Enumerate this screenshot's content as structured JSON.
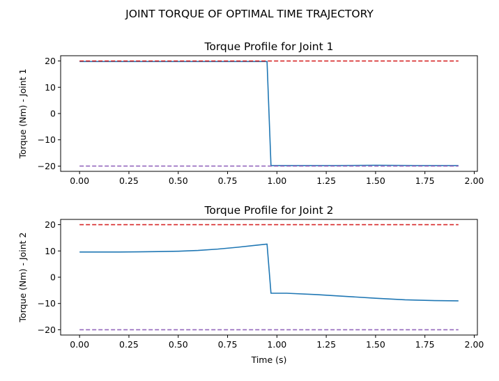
{
  "figure": {
    "title": "JOINT TORQUE OF OPTIMAL TIME TRAJECTORY"
  },
  "colors": {
    "series": "#1f77b4",
    "upper_limit": "#d62728",
    "lower_limit": "#9467bd"
  },
  "chart_data": [
    {
      "type": "line",
      "title": "Torque Profile for Joint 1",
      "xlabel": "",
      "ylabel": "Torque (Nm) - Joint 1",
      "xlim": [
        -0.096,
        2.016
      ],
      "ylim": [
        -22,
        22
      ],
      "xticks": [
        0.0,
        0.25,
        0.5,
        0.75,
        1.0,
        1.25,
        1.5,
        1.75,
        2.0
      ],
      "xtick_labels": [
        "0.00",
        "0.25",
        "0.50",
        "0.75",
        "1.00",
        "1.25",
        "1.50",
        "1.75",
        "2.00"
      ],
      "yticks": [
        -20,
        -10,
        0,
        10,
        20
      ],
      "ytick_labels": [
        "−20",
        "−10",
        "0",
        "10",
        "20"
      ],
      "grid": false,
      "series": [
        {
          "style": "solid",
          "x": [
            0.0,
            0.2,
            0.4,
            0.6,
            0.8,
            0.94,
            0.95,
            0.97,
            1.1,
            1.3,
            1.5,
            1.7,
            1.92
          ],
          "y": [
            19.8,
            19.8,
            19.8,
            19.8,
            19.8,
            19.8,
            19.8,
            -19.8,
            -19.8,
            -19.8,
            -19.7,
            -19.8,
            -19.8
          ]
        },
        {
          "style": "dashed",
          "color_key": "upper_limit",
          "x": [
            0.0,
            1.92
          ],
          "y": [
            20,
            20
          ]
        },
        {
          "style": "dashed",
          "color_key": "lower_limit",
          "x": [
            0.0,
            1.92
          ],
          "y": [
            -20,
            -20
          ]
        }
      ]
    },
    {
      "type": "line",
      "title": "Torque Profile for Joint 2",
      "xlabel": "Time (s)",
      "ylabel": "Torque (Nm) - Joint 2",
      "xlim": [
        -0.096,
        2.016
      ],
      "ylim": [
        -22,
        22
      ],
      "xticks": [
        0.0,
        0.25,
        0.5,
        0.75,
        1.0,
        1.25,
        1.5,
        1.75,
        2.0
      ],
      "xtick_labels": [
        "0.00",
        "0.25",
        "0.50",
        "0.75",
        "1.00",
        "1.25",
        "1.50",
        "1.75",
        "2.00"
      ],
      "yticks": [
        -20,
        -10,
        0,
        10,
        20
      ],
      "ytick_labels": [
        "−20",
        "−10",
        "0",
        "10",
        "20"
      ],
      "grid": false,
      "series": [
        {
          "style": "solid",
          "x": [
            0.0,
            0.1,
            0.2,
            0.3,
            0.4,
            0.5,
            0.6,
            0.7,
            0.8,
            0.9,
            0.95,
            0.97,
            1.05,
            1.2,
            1.35,
            1.5,
            1.65,
            1.8,
            1.92
          ],
          "y": [
            9.6,
            9.6,
            9.6,
            9.65,
            9.75,
            9.9,
            10.2,
            10.7,
            11.4,
            12.2,
            12.6,
            -6.1,
            -6.1,
            -6.6,
            -7.3,
            -8.0,
            -8.6,
            -8.9,
            -9.0
          ]
        },
        {
          "style": "dashed",
          "color_key": "upper_limit",
          "x": [
            0.0,
            1.92
          ],
          "y": [
            20,
            20
          ]
        },
        {
          "style": "dashed",
          "color_key": "lower_limit",
          "x": [
            0.0,
            1.92
          ],
          "y": [
            -20,
            -20
          ]
        }
      ]
    }
  ]
}
